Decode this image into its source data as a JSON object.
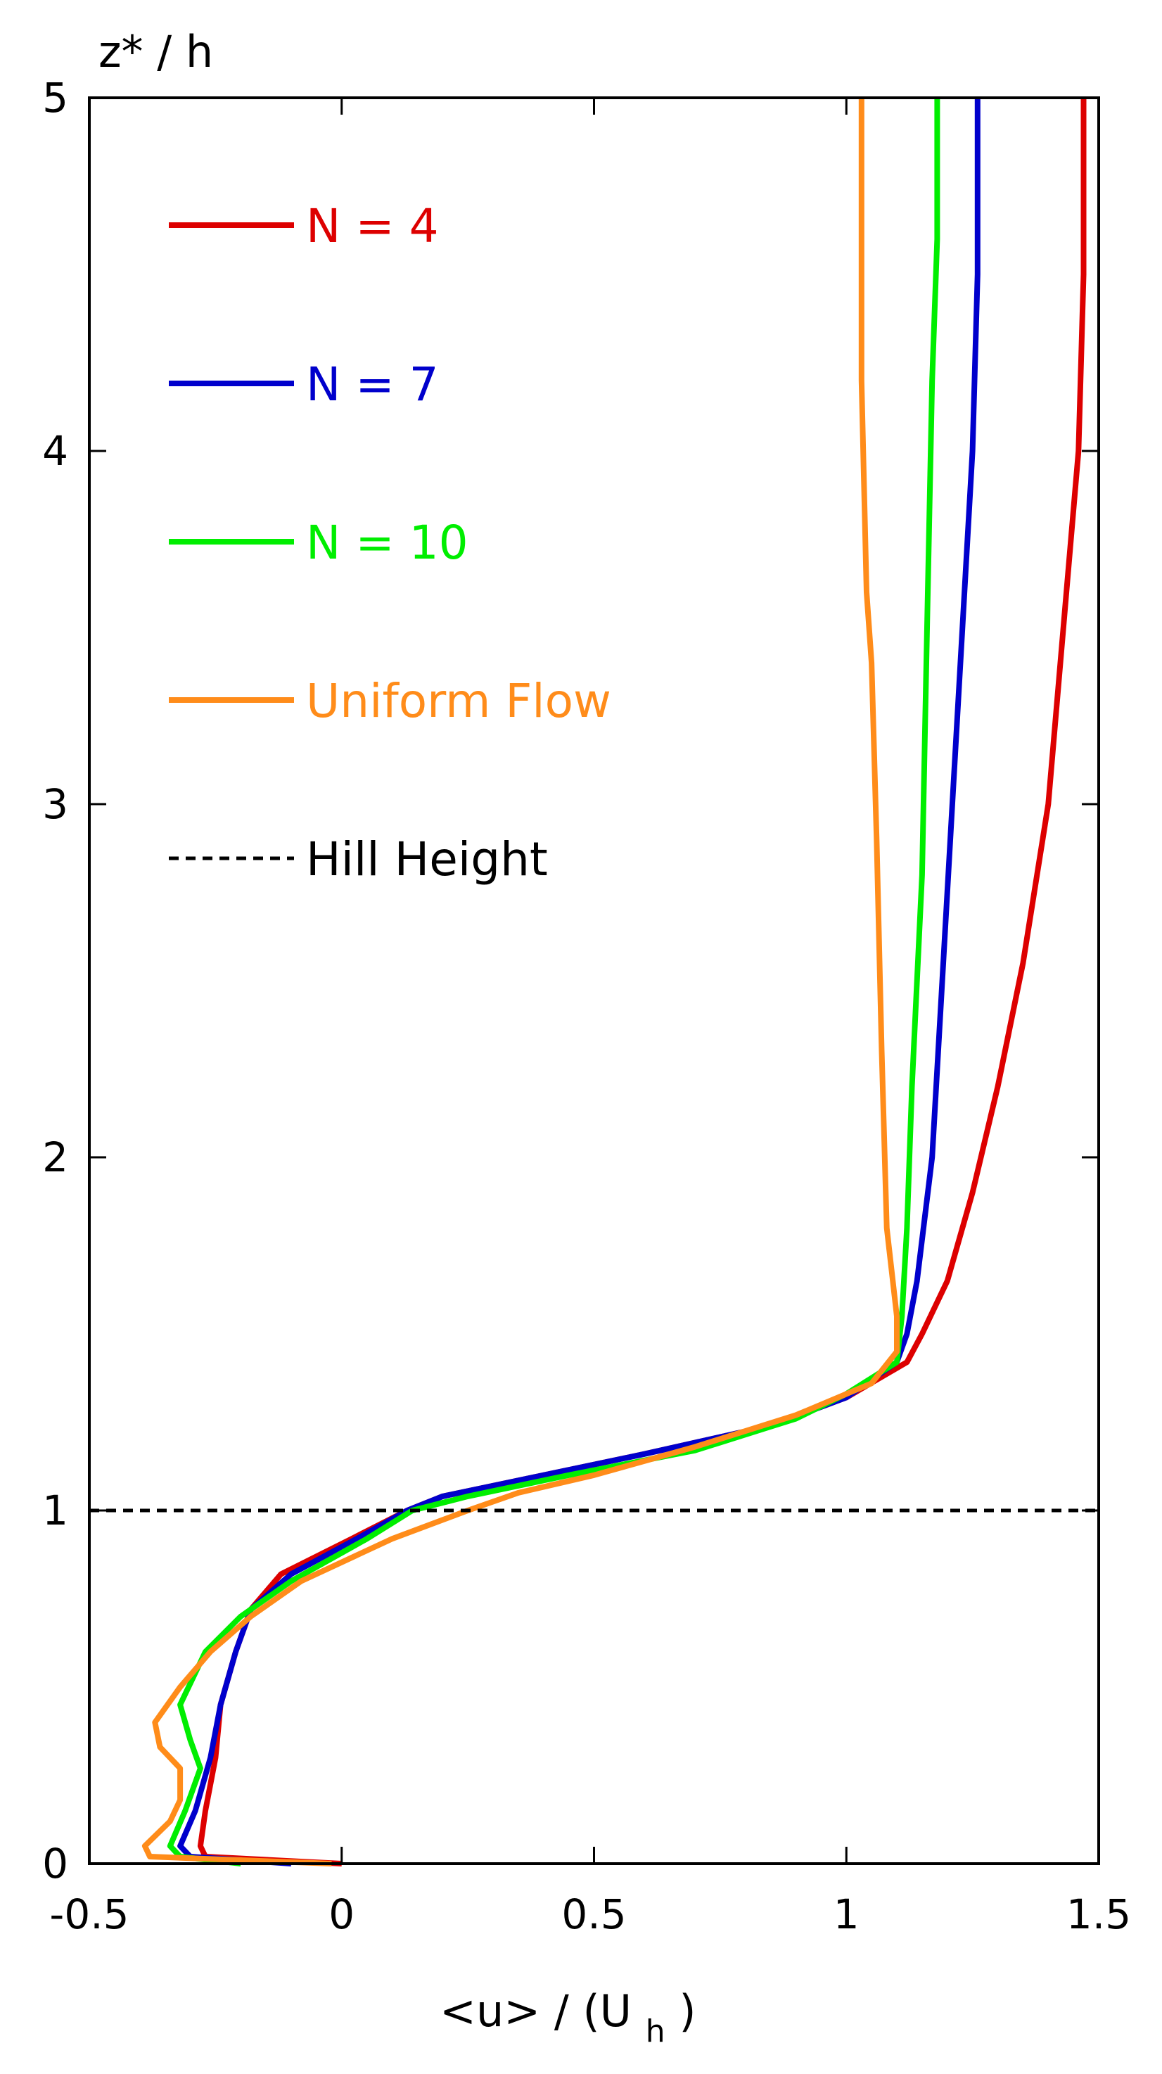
{
  "chart_data": {
    "type": "line",
    "title": "",
    "xlabel": "<u> / (U",
    "xlabel_sub": "h",
    "xlabel_close": ")",
    "ylabel": "z* / h",
    "xlim": [
      -0.5,
      1.5
    ],
    "ylim": [
      0,
      5
    ],
    "xticks": [
      -0.5,
      0,
      0.5,
      1,
      1.5
    ],
    "xtick_labels": [
      "-0.5",
      "0",
      "0.5",
      "1",
      "1.5"
    ],
    "yticks": [
      0,
      1,
      2,
      3,
      4,
      5
    ],
    "ytick_labels": [
      "0",
      "1",
      "2",
      "3",
      "4",
      "5"
    ],
    "grid": false,
    "legend_position": "top-left",
    "series": [
      {
        "name": "N = 4",
        "color": "#dd0000",
        "style": "solid",
        "points": [
          [
            0.0,
            0.0
          ],
          [
            -0.27,
            0.02
          ],
          [
            -0.28,
            0.05
          ],
          [
            -0.27,
            0.15
          ],
          [
            -0.25,
            0.3
          ],
          [
            -0.24,
            0.45
          ],
          [
            -0.21,
            0.6
          ],
          [
            -0.18,
            0.72
          ],
          [
            -0.12,
            0.82
          ],
          [
            0.02,
            0.92
          ],
          [
            0.13,
            1.0
          ],
          [
            0.2,
            1.04
          ],
          [
            0.4,
            1.1
          ],
          [
            0.6,
            1.16
          ],
          [
            0.85,
            1.24
          ],
          [
            1.0,
            1.32
          ],
          [
            1.12,
            1.42
          ],
          [
            1.15,
            1.5
          ],
          [
            1.2,
            1.65
          ],
          [
            1.25,
            1.9
          ],
          [
            1.3,
            2.2
          ],
          [
            1.35,
            2.55
          ],
          [
            1.4,
            3.0
          ],
          [
            1.43,
            3.5
          ],
          [
            1.46,
            4.0
          ],
          [
            1.47,
            4.5
          ],
          [
            1.47,
            5.0
          ]
        ]
      },
      {
        "name": "N = 7",
        "color": "#0000cc",
        "style": "solid",
        "points": [
          [
            -0.1,
            0.0
          ],
          [
            -0.3,
            0.02
          ],
          [
            -0.32,
            0.05
          ],
          [
            -0.29,
            0.15
          ],
          [
            -0.26,
            0.3
          ],
          [
            -0.24,
            0.45
          ],
          [
            -0.21,
            0.6
          ],
          [
            -0.18,
            0.72
          ],
          [
            -0.1,
            0.82
          ],
          [
            0.03,
            0.92
          ],
          [
            0.13,
            1.0
          ],
          [
            0.2,
            1.04
          ],
          [
            0.4,
            1.1
          ],
          [
            0.6,
            1.16
          ],
          [
            0.85,
            1.24
          ],
          [
            1.0,
            1.32
          ],
          [
            1.1,
            1.42
          ],
          [
            1.12,
            1.5
          ],
          [
            1.14,
            1.65
          ],
          [
            1.17,
            2.0
          ],
          [
            1.19,
            2.5
          ],
          [
            1.21,
            3.0
          ],
          [
            1.23,
            3.5
          ],
          [
            1.25,
            4.0
          ],
          [
            1.26,
            4.5
          ],
          [
            1.26,
            5.0
          ]
        ]
      },
      {
        "name": "N = 10",
        "color": "#00ee00",
        "style": "solid",
        "points": [
          [
            -0.2,
            0.0
          ],
          [
            -0.32,
            0.02
          ],
          [
            -0.34,
            0.05
          ],
          [
            -0.31,
            0.15
          ],
          [
            -0.28,
            0.27
          ],
          [
            -0.3,
            0.35
          ],
          [
            -0.32,
            0.45
          ],
          [
            -0.27,
            0.6
          ],
          [
            -0.2,
            0.7
          ],
          [
            -0.1,
            0.8
          ],
          [
            0.05,
            0.92
          ],
          [
            0.14,
            1.0
          ],
          [
            0.25,
            1.04
          ],
          [
            0.45,
            1.1
          ],
          [
            0.7,
            1.17
          ],
          [
            0.9,
            1.26
          ],
          [
            1.0,
            1.33
          ],
          [
            1.1,
            1.42
          ],
          [
            1.11,
            1.55
          ],
          [
            1.12,
            1.8
          ],
          [
            1.13,
            2.2
          ],
          [
            1.15,
            2.8
          ],
          [
            1.16,
            3.5
          ],
          [
            1.17,
            4.2
          ],
          [
            1.18,
            4.6
          ],
          [
            1.18,
            5.0
          ]
        ]
      },
      {
        "name": "Uniform Flow",
        "color": "#ff8c1a",
        "style": "solid",
        "points": [
          [
            -0.02,
            0.0
          ],
          [
            -0.38,
            0.02
          ],
          [
            -0.39,
            0.05
          ],
          [
            -0.34,
            0.12
          ],
          [
            -0.32,
            0.18
          ],
          [
            -0.32,
            0.27
          ],
          [
            -0.36,
            0.33
          ],
          [
            -0.37,
            0.4
          ],
          [
            -0.32,
            0.5
          ],
          [
            -0.26,
            0.6
          ],
          [
            -0.18,
            0.7
          ],
          [
            -0.08,
            0.8
          ],
          [
            0.1,
            0.92
          ],
          [
            0.25,
            1.0
          ],
          [
            0.35,
            1.05
          ],
          [
            0.5,
            1.1
          ],
          [
            0.7,
            1.18
          ],
          [
            0.9,
            1.27
          ],
          [
            1.05,
            1.36
          ],
          [
            1.1,
            1.45
          ],
          [
            1.1,
            1.55
          ],
          [
            1.08,
            1.8
          ],
          [
            1.07,
            2.3
          ],
          [
            1.06,
            2.9
          ],
          [
            1.05,
            3.4
          ],
          [
            1.04,
            3.6
          ],
          [
            1.03,
            4.2
          ],
          [
            1.03,
            5.0
          ]
        ]
      },
      {
        "name": "Hill Height",
        "color": "#000000",
        "style": "dashed",
        "points": [
          [
            -0.5,
            1.0
          ],
          [
            1.5,
            1.0
          ]
        ]
      }
    ]
  }
}
